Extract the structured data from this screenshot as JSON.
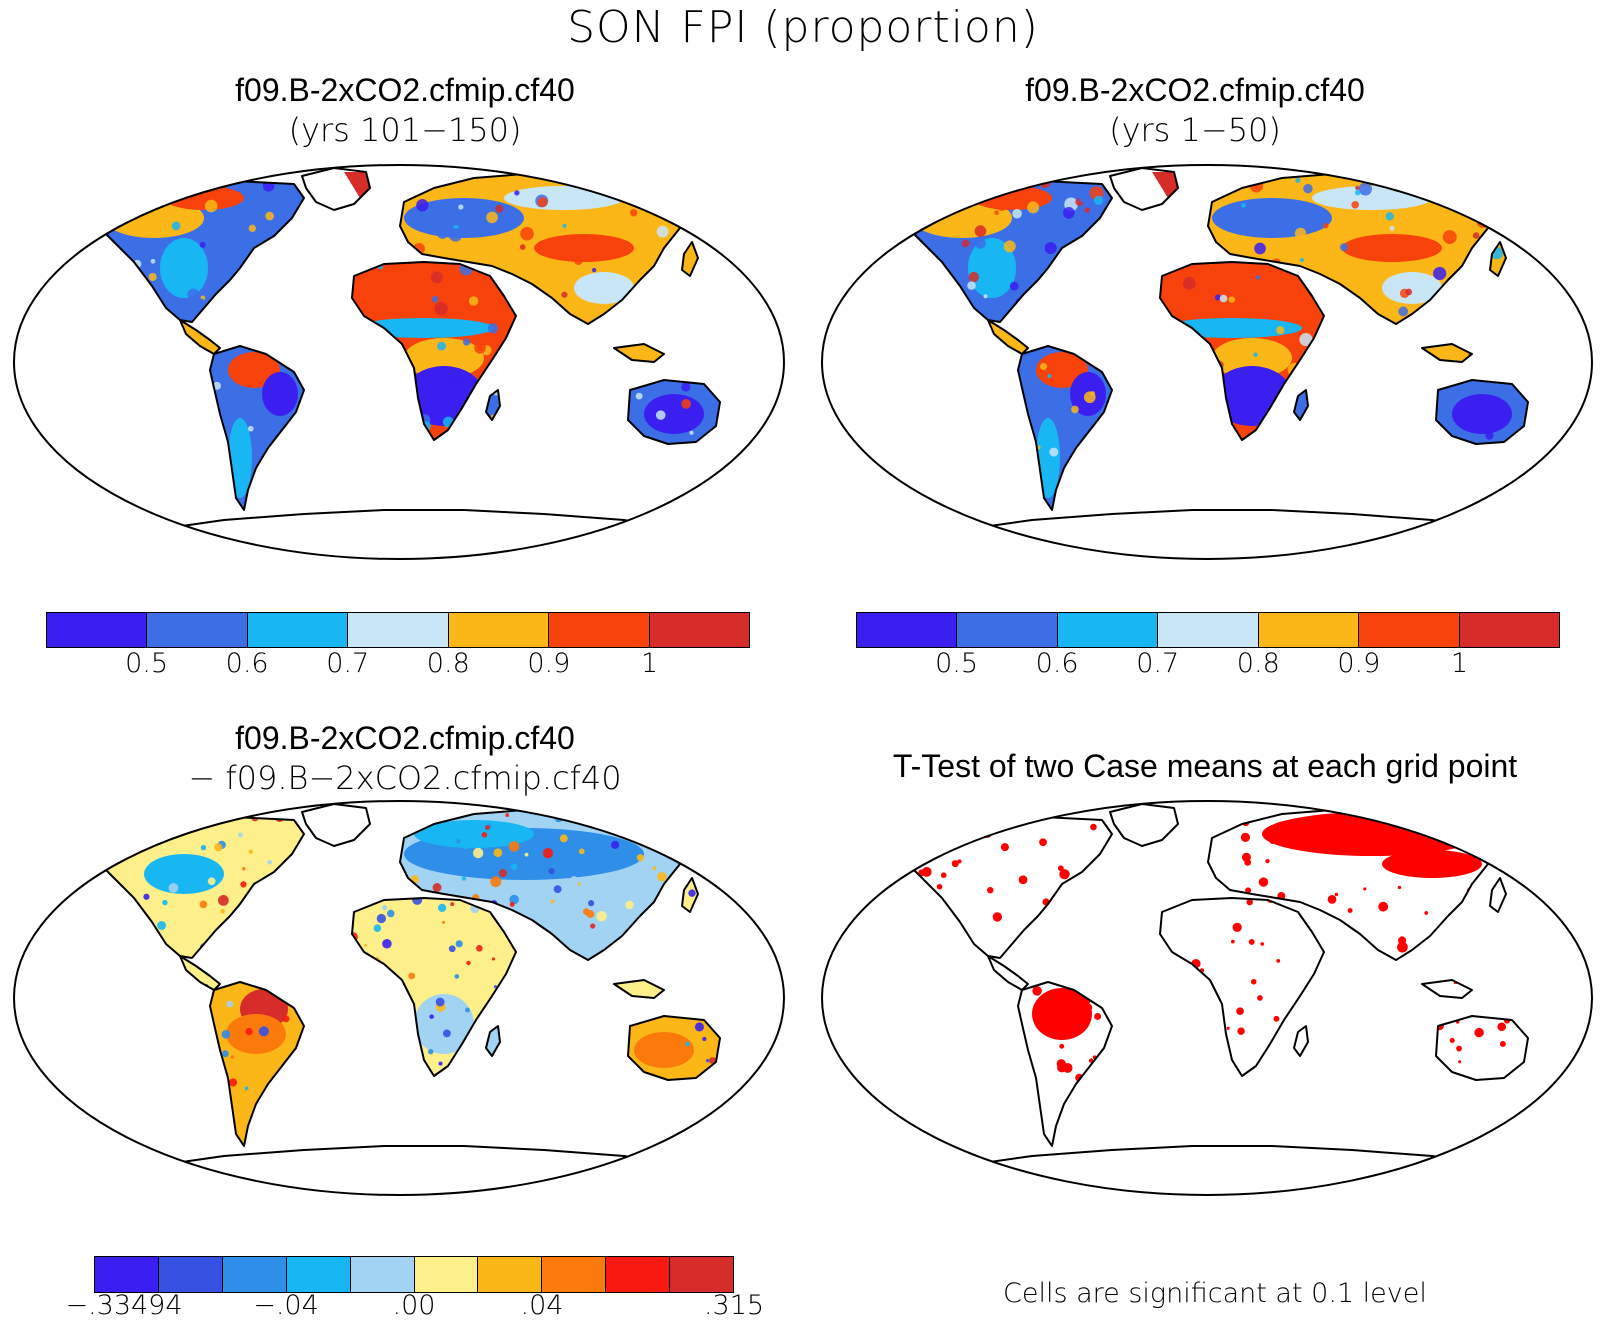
{
  "title": "SON FPI (proportion)",
  "panels": [
    {
      "id": "case1",
      "title_line1": "f09.B-2xCO2.cfmip.cf40",
      "title_line2": "(yrs 101−150)"
    },
    {
      "id": "case2",
      "title_line1": "f09.B-2xCO2.cfmip.cf40",
      "title_line2": "(yrs 1−50)"
    },
    {
      "id": "diff",
      "title_line1": "f09.B-2xCO2.cfmip.cf40",
      "title_line2": "− f09.B−2xCO2.cfmip.cf40"
    },
    {
      "id": "ttest",
      "title_line1": "T-Test of two Case means at each grid point"
    }
  ],
  "colorbar_abs": {
    "colors": [
      "#3a1ff0",
      "#3c6fe6",
      "#18b6f2",
      "#c9e6f7",
      "#fbb717",
      "#f8420b",
      "#d62c2a"
    ],
    "labels": [
      "0.5",
      "0.6",
      "0.7",
      "0.8",
      "0.9",
      "1"
    ]
  },
  "colorbar_diff": {
    "colors": [
      "#3a1ff0",
      "#3650e2",
      "#2e8ee8",
      "#18b6f2",
      "#a3d3f2",
      "#fdf08a",
      "#fbb717",
      "#fb7a0c",
      "#f81a10",
      "#d62c2a"
    ],
    "labels": [
      ".33494",
      "−.04",
      ".00",
      ".04",
      ".315"
    ],
    "first_label": "−.33494"
  },
  "ttest_note": "Cells are significant at 0.1 level",
  "ttest_color": "#ff0000"
}
